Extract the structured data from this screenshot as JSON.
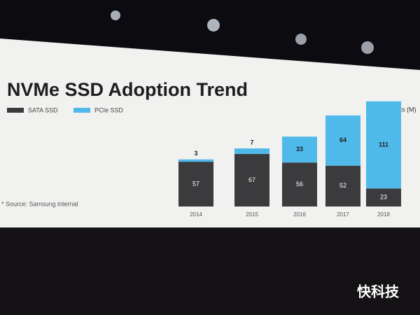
{
  "chart_data": {
    "type": "stacked_bar",
    "title": "NVMe SSD Adoption Trend",
    "unit_label": "Units (M)",
    "source_note": "* Source: Samsung internal",
    "watermark": "快科技",
    "categories": [
      "2014",
      "2015",
      "2016",
      "2017",
      "2018"
    ],
    "series": [
      {
        "name": "SATA SSD",
        "color": "#3b3b3d",
        "values": [
          57,
          67,
          56,
          52,
          23
        ]
      },
      {
        "name": "PCIe SSD",
        "color": "#4fb9ea",
        "values": [
          3,
          7,
          33,
          64,
          111
        ]
      }
    ],
    "ylim": [
      0,
      140
    ]
  }
}
